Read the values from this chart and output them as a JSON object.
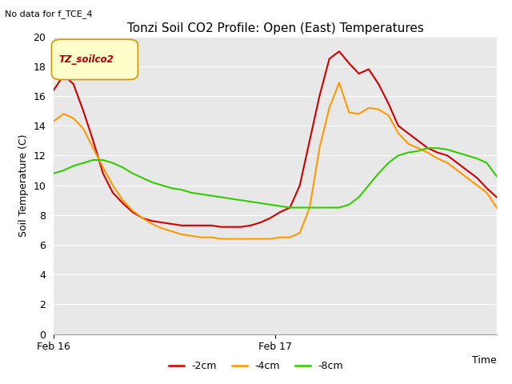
{
  "title": "Tonzi Soil CO2 Profile: Open (East) Temperatures",
  "subtitle": "No data for f_TCE_4",
  "ylabel": "Soil Temperature (C)",
  "legend_label": "TZ_soilco2",
  "ylim": [
    0,
    20
  ],
  "yticks": [
    0,
    2,
    4,
    6,
    8,
    10,
    12,
    14,
    16,
    18,
    20
  ],
  "xtick_labels": [
    "Feb 16",
    "Feb 17"
  ],
  "xtick_positions": [
    0.0,
    0.5
  ],
  "bg_color": "#e8e8e8",
  "plot_bg_color": "#d9d9d9",
  "line_colors": {
    "-2cm": "#cc0000",
    "-4cm": "#ff9900",
    "-8cm": "#33cc00"
  },
  "series": {
    "-2cm": [
      16.4,
      17.4,
      16.8,
      15.0,
      13.0,
      10.8,
      9.5,
      8.8,
      8.2,
      7.8,
      7.6,
      7.5,
      7.4,
      7.3,
      7.3,
      7.3,
      7.3,
      7.2,
      7.2,
      7.2,
      7.3,
      7.5,
      7.8,
      8.2,
      8.5,
      10.0,
      13.0,
      16.0,
      18.5,
      19.0,
      18.2,
      17.5,
      17.8,
      16.8,
      15.5,
      14.0,
      13.5,
      13.0,
      12.5,
      12.2,
      12.0,
      11.5,
      11.0,
      10.5,
      9.8,
      9.2
    ],
    "-4cm": [
      14.3,
      14.8,
      14.5,
      13.8,
      12.5,
      11.2,
      10.0,
      9.0,
      8.3,
      7.8,
      7.4,
      7.1,
      6.9,
      6.7,
      6.6,
      6.5,
      6.5,
      6.4,
      6.4,
      6.4,
      6.4,
      6.4,
      6.4,
      6.5,
      6.5,
      6.8,
      8.5,
      12.5,
      15.2,
      16.9,
      14.9,
      14.8,
      15.2,
      15.1,
      14.7,
      13.5,
      12.8,
      12.5,
      12.2,
      11.8,
      11.5,
      11.0,
      10.5,
      10.0,
      9.5,
      8.5
    ],
    "-8cm": [
      10.8,
      11.0,
      11.3,
      11.5,
      11.7,
      11.7,
      11.5,
      11.2,
      10.8,
      10.5,
      10.2,
      10.0,
      9.8,
      9.7,
      9.5,
      9.4,
      9.3,
      9.2,
      9.1,
      9.0,
      8.9,
      8.8,
      8.7,
      8.6,
      8.5,
      8.5,
      8.5,
      8.5,
      8.5,
      8.5,
      8.7,
      9.2,
      10.0,
      10.8,
      11.5,
      12.0,
      12.2,
      12.3,
      12.5,
      12.5,
      12.4,
      12.2,
      12.0,
      11.8,
      11.5,
      10.6
    ]
  }
}
